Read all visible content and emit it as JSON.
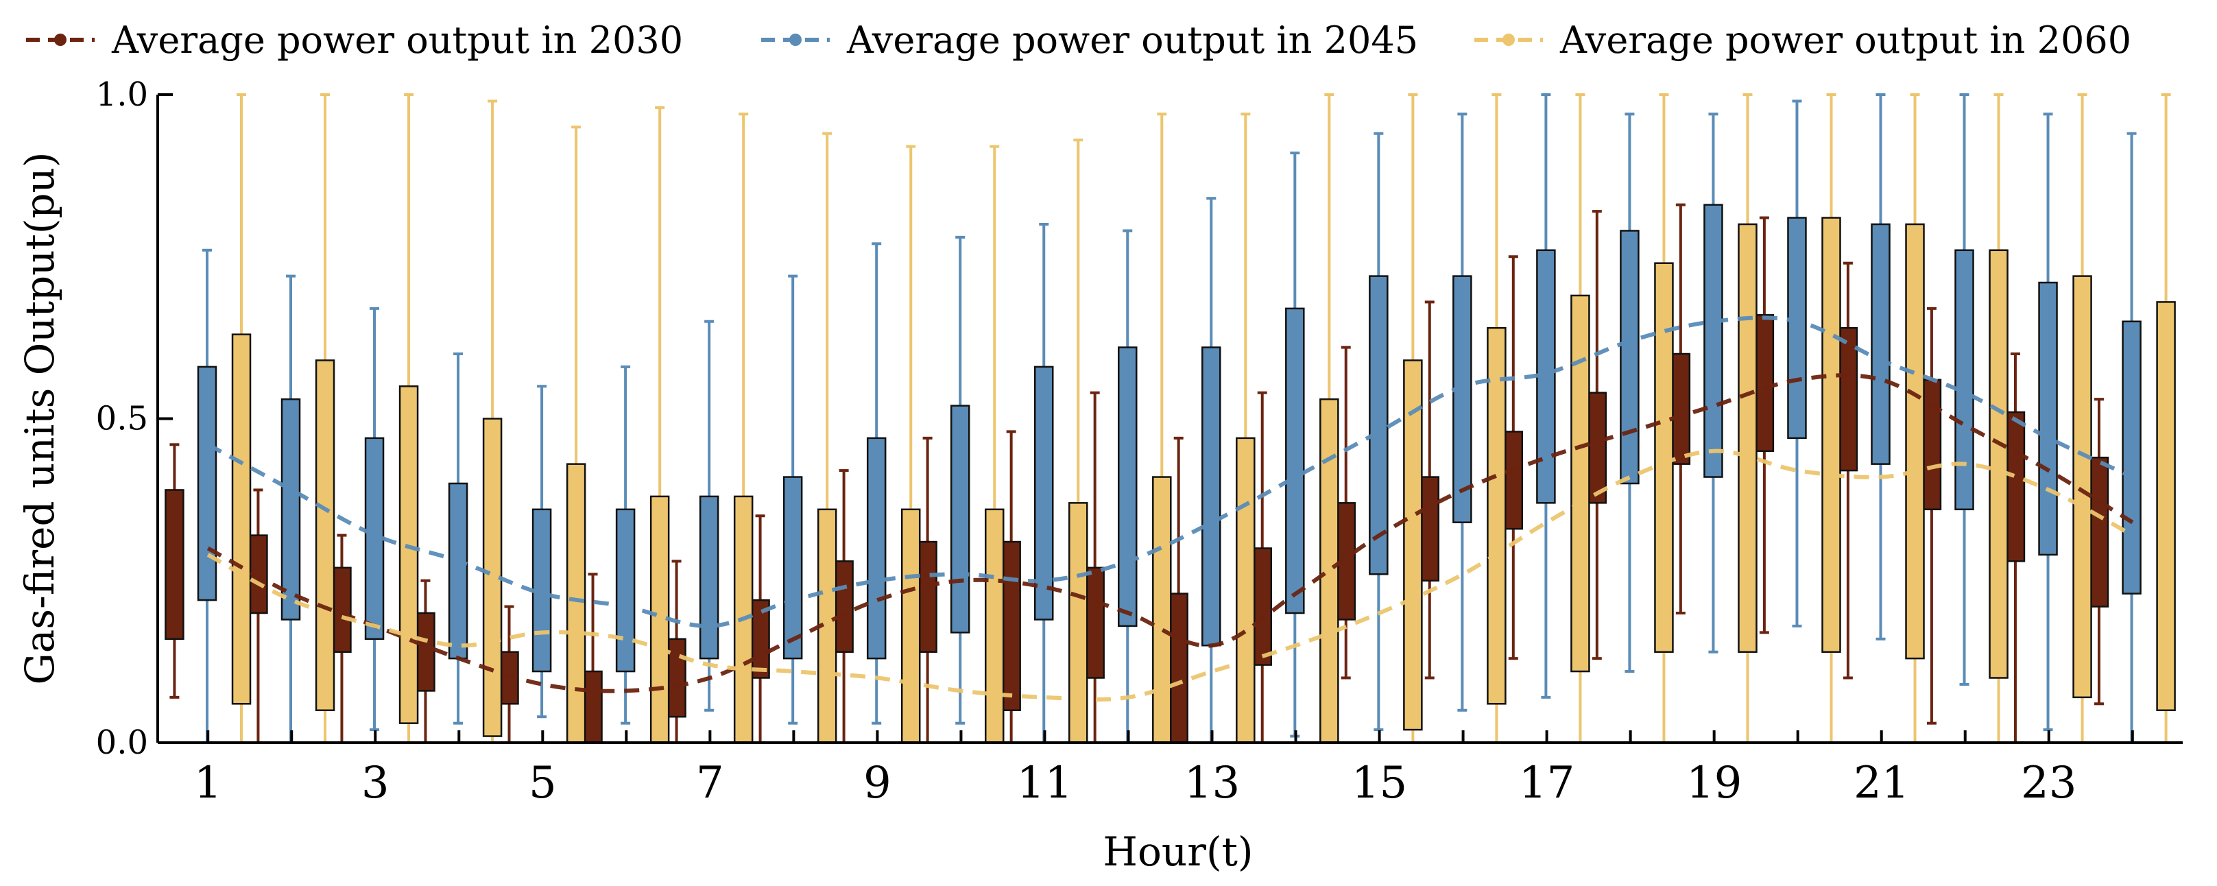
{
  "chart_data": {
    "type": "box",
    "title": "",
    "xlabel": "Hour(t)",
    "ylabel": "Gas-fired units Output(pu)",
    "ylim": [
      0,
      1
    ],
    "xlim": [
      0.4,
      24.6
    ],
    "y_ticks": [
      0.0,
      0.5,
      1.0
    ],
    "y_tick_labels": [
      "0.0",
      "0.5",
      "1.0"
    ],
    "x_ticks": [
      1,
      3,
      5,
      7,
      9,
      11,
      13,
      15,
      17,
      19,
      21,
      23
    ],
    "x_tick_labels": [
      "1",
      "3",
      "5",
      "7",
      "9",
      "11",
      "13",
      "15",
      "17",
      "19",
      "21",
      "23"
    ],
    "hours": [
      1,
      2,
      3,
      4,
      5,
      6,
      7,
      8,
      9,
      10,
      11,
      12,
      13,
      14,
      15,
      16,
      17,
      18,
      19,
      20,
      21,
      22,
      23,
      24
    ],
    "legend": {
      "position": "top",
      "entries": [
        "Average power output in 2030",
        "Average power output in 2045",
        "Average power output in 2060"
      ]
    },
    "series": [
      {
        "name": "Average power output in 2030",
        "color": "#6b2410",
        "mean": [
          0.3,
          0.23,
          0.18,
          0.13,
          0.09,
          0.08,
          0.1,
          0.16,
          0.22,
          0.25,
          0.24,
          0.2,
          0.15,
          0.23,
          0.32,
          0.39,
          0.44,
          0.48,
          0.52,
          0.56,
          0.56,
          0.49,
          0.42,
          0.34
        ],
        "box_low": [
          0.16,
          0.2,
          0.14,
          0.08,
          0.06,
          0.0,
          0.04,
          0.1,
          0.14,
          0.14,
          0.05,
          0.1,
          0.0,
          0.12,
          0.19,
          0.25,
          0.33,
          0.37,
          0.43,
          0.45,
          0.42,
          0.36,
          0.28,
          0.21
        ],
        "box_high": [
          0.39,
          0.32,
          0.27,
          0.2,
          0.14,
          0.11,
          0.16,
          0.22,
          0.28,
          0.31,
          0.31,
          0.27,
          0.23,
          0.3,
          0.37,
          0.41,
          0.48,
          0.54,
          0.6,
          0.66,
          0.64,
          0.56,
          0.51,
          0.44
        ],
        "whisker_low": [
          0.07,
          0.0,
          0.0,
          0.0,
          0.0,
          0.0,
          0.0,
          0.0,
          0.0,
          0.0,
          0.0,
          0.0,
          0.0,
          0.0,
          0.1,
          0.1,
          0.13,
          0.13,
          0.2,
          0.17,
          0.1,
          0.03,
          0.0,
          0.06
        ],
        "whisker_high": [
          0.46,
          0.39,
          0.32,
          0.25,
          0.21,
          0.26,
          0.28,
          0.35,
          0.42,
          0.47,
          0.48,
          0.54,
          0.47,
          0.54,
          0.61,
          0.68,
          0.75,
          0.82,
          0.83,
          0.81,
          0.74,
          0.67,
          0.6,
          0.53
        ]
      },
      {
        "name": "Average power output in 2045",
        "color": "#5a8cb7",
        "mean": [
          0.46,
          0.39,
          0.32,
          0.28,
          0.23,
          0.21,
          0.18,
          0.22,
          0.25,
          0.26,
          0.25,
          0.28,
          0.34,
          0.41,
          0.48,
          0.55,
          0.57,
          0.62,
          0.65,
          0.65,
          0.59,
          0.54,
          0.47,
          0.41
        ],
        "box_low": [
          0.22,
          0.19,
          0.16,
          0.13,
          0.11,
          0.11,
          0.13,
          0.13,
          0.13,
          0.17,
          0.19,
          0.18,
          0.15,
          0.2,
          0.26,
          0.34,
          0.37,
          0.4,
          0.41,
          0.47,
          0.43,
          0.36,
          0.29,
          0.23
        ],
        "box_high": [
          0.58,
          0.53,
          0.47,
          0.4,
          0.36,
          0.36,
          0.38,
          0.41,
          0.47,
          0.52,
          0.58,
          0.61,
          0.61,
          0.67,
          0.72,
          0.72,
          0.76,
          0.79,
          0.83,
          0.81,
          0.8,
          0.76,
          0.71,
          0.65
        ],
        "whisker_low": [
          0.0,
          0.0,
          0.02,
          0.03,
          0.04,
          0.03,
          0.05,
          0.03,
          0.03,
          0.03,
          0.0,
          0.0,
          0.0,
          0.01,
          0.02,
          0.05,
          0.07,
          0.11,
          0.14,
          0.18,
          0.16,
          0.09,
          0.02,
          0.0
        ],
        "whisker_high": [
          0.76,
          0.72,
          0.67,
          0.6,
          0.55,
          0.58,
          0.65,
          0.72,
          0.77,
          0.78,
          0.8,
          0.79,
          0.84,
          0.91,
          0.94,
          0.97,
          1.0,
          0.97,
          0.97,
          0.99,
          1.0,
          1.0,
          0.97,
          0.94
        ]
      },
      {
        "name": "Average power output in 2060",
        "color": "#ecc56e",
        "mean": [
          0.29,
          0.22,
          0.18,
          0.15,
          0.17,
          0.16,
          0.12,
          0.11,
          0.1,
          0.08,
          0.07,
          0.07,
          0.11,
          0.15,
          0.2,
          0.26,
          0.34,
          0.41,
          0.45,
          0.42,
          0.41,
          0.43,
          0.39,
          0.32
        ],
        "box_low": [
          0.06,
          0.05,
          0.03,
          0.01,
          0.0,
          0.0,
          0.0,
          0.0,
          0.0,
          0.0,
          0.0,
          0.0,
          0.0,
          0.0,
          0.02,
          0.06,
          0.11,
          0.14,
          0.14,
          0.14,
          0.13,
          0.1,
          0.07,
          0.05
        ],
        "box_high": [
          0.63,
          0.59,
          0.55,
          0.5,
          0.43,
          0.38,
          0.38,
          0.36,
          0.36,
          0.36,
          0.37,
          0.41,
          0.47,
          0.53,
          0.59,
          0.64,
          0.69,
          0.74,
          0.8,
          0.81,
          0.8,
          0.76,
          0.72,
          0.68
        ],
        "whisker_low": [
          0.0,
          0.0,
          0.0,
          0.0,
          0.0,
          0.0,
          0.0,
          0.0,
          0.0,
          0.0,
          0.0,
          0.0,
          0.0,
          0.0,
          0.0,
          0.0,
          0.0,
          0.0,
          0.0,
          0.0,
          0.0,
          0.0,
          0.0,
          0.0
        ],
        "whisker_high": [
          1.0,
          1.0,
          1.0,
          0.99,
          0.95,
          0.98,
          0.97,
          0.94,
          0.92,
          0.92,
          0.93,
          0.97,
          0.97,
          1.0,
          1.0,
          1.0,
          1.0,
          1.0,
          1.0,
          1.0,
          1.0,
          1.0,
          1.0,
          1.0
        ]
      }
    ]
  }
}
